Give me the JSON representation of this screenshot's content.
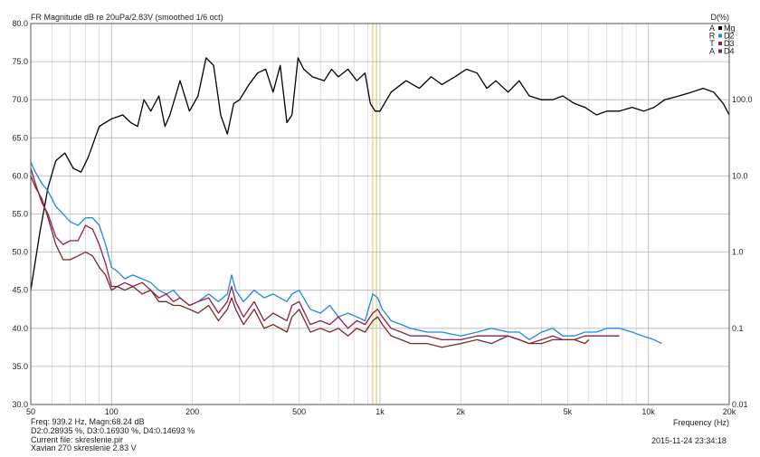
{
  "chart_data": {
    "type": "line",
    "title": "FR Magnitude dB re 20uPa/2.83V (smoothed 1/6 oct)",
    "ylabel_right": "D(%)",
    "xlabel": "Frequency (Hz)",
    "x_scale": "log",
    "xlim": [
      50,
      20000
    ],
    "ylim_left": [
      30,
      80
    ],
    "ylim_right": [
      0.01,
      1000
    ],
    "grid": true,
    "legend_position": "top-right",
    "x_ticks": [
      {
        "value": 50,
        "label": "50"
      },
      {
        "value": 100,
        "label": "100"
      },
      {
        "value": 200,
        "label": "200"
      },
      {
        "value": 500,
        "label": "500"
      },
      {
        "value": 1000,
        "label": "1k"
      },
      {
        "value": 2000,
        "label": "2k"
      },
      {
        "value": 5000,
        "label": "5k"
      },
      {
        "value": 10000,
        "label": "10k"
      },
      {
        "value": 20000,
        "label": "20k"
      }
    ],
    "y_left_ticks": [
      "80.0",
      "75.0",
      "70.0",
      "65.0",
      "60.0",
      "55.0",
      "50.0",
      "45.0",
      "40.0",
      "35.0",
      "30.0"
    ],
    "y_right_ticks": [
      "100.0",
      "10.0",
      "1.0",
      "0.1",
      "0.01"
    ],
    "cursors_hz": [
      939.2,
      970
    ],
    "legend": [
      {
        "code": "A",
        "name": "Mg",
        "color": "#000000"
      },
      {
        "code": "R",
        "name": "D2",
        "color": "#1e88e5"
      },
      {
        "code": "T",
        "name": "D3",
        "color": "#8e1f4b"
      },
      {
        "code": "A",
        "name": "D4",
        "color": "#7a2a2a"
      }
    ],
    "series": [
      {
        "name": "Mg",
        "color": "#000000",
        "x": [
          50,
          54,
          58,
          62,
          67,
          72,
          77,
          82,
          90,
          100,
          110,
          118,
          125,
          132,
          140,
          150,
          158,
          165,
          180,
          195,
          210,
          225,
          240,
          255,
          270,
          285,
          300,
          325,
          350,
          375,
          400,
          425,
          450,
          470,
          495,
          520,
          560,
          620,
          660,
          700,
          760,
          820,
          880,
          920,
          960,
          1000,
          1100,
          1250,
          1400,
          1550,
          1700,
          1900,
          2100,
          2300,
          2500,
          2700,
          3000,
          3300,
          3600,
          4000,
          4400,
          4800,
          5300,
          5800,
          6400,
          7000,
          7800,
          8700,
          9600,
          10500,
          11500,
          13000,
          14500,
          16000,
          17500,
          19000,
          20000
        ],
        "y": [
          45.0,
          52.5,
          58.5,
          62.0,
          63.0,
          61.0,
          60.5,
          62.5,
          66.5,
          67.5,
          68.0,
          67.0,
          66.5,
          70.0,
          68.5,
          70.5,
          66.5,
          68.0,
          72.5,
          68.5,
          70.5,
          75.5,
          74.5,
          68.0,
          65.5,
          69.5,
          70.0,
          72.0,
          73.5,
          74.0,
          71.0,
          74.5,
          67.0,
          68.0,
          75.5,
          74.0,
          73.0,
          72.5,
          74.0,
          73.0,
          74.0,
          72.5,
          73.5,
          69.5,
          68.5,
          68.5,
          71.0,
          72.5,
          71.5,
          73.0,
          72.0,
          73.0,
          74.0,
          73.5,
          71.5,
          72.5,
          71.0,
          72.5,
          70.5,
          70.0,
          70.0,
          70.5,
          69.5,
          69.0,
          68.0,
          68.5,
          68.5,
          69.0,
          68.5,
          69.0,
          70.0,
          70.5,
          71.0,
          71.5,
          71.0,
          69.5,
          68.0
        ]
      },
      {
        "name": "D2",
        "color": "#1e88e5",
        "x": [
          50,
          52,
          55,
          58,
          62,
          66,
          70,
          75,
          80,
          85,
          90,
          95,
          100,
          105,
          112,
          120,
          130,
          140,
          150,
          160,
          170,
          180,
          195,
          210,
          230,
          250,
          270,
          280,
          290,
          310,
          340,
          370,
          400,
          450,
          470,
          500,
          550,
          600,
          650,
          700,
          760,
          820,
          880,
          940,
          980,
          1020,
          1100,
          1200,
          1300,
          1500,
          1700,
          2000,
          2300,
          2600,
          3000,
          3300,
          3600,
          4000,
          4400,
          4800,
          5300,
          5800,
          6400,
          7000,
          7800,
          8700,
          9500,
          10500,
          11200
        ],
        "y": [
          61.8,
          60.5,
          59.0,
          58.0,
          56.0,
          55.0,
          54.0,
          53.5,
          54.5,
          54.5,
          53.5,
          51.0,
          48.0,
          47.5,
          46.5,
          47.0,
          46.5,
          46.0,
          45.0,
          44.5,
          45.0,
          44.0,
          43.0,
          43.5,
          44.5,
          43.5,
          44.5,
          47.0,
          45.0,
          43.5,
          45.0,
          44.0,
          44.5,
          43.5,
          44.5,
          45.0,
          42.5,
          42.0,
          43.0,
          41.5,
          42.0,
          41.5,
          41.0,
          44.5,
          44.0,
          42.5,
          41.0,
          40.5,
          40.0,
          39.5,
          39.5,
          39.0,
          39.5,
          40.0,
          39.5,
          39.5,
          38.5,
          39.5,
          40.0,
          39.0,
          39.0,
          39.5,
          39.5,
          40.0,
          40.0,
          39.5,
          39.0,
          38.5,
          38.0
        ]
      },
      {
        "name": "D3",
        "color": "#8e1f4b",
        "x": [
          50,
          52,
          55,
          58,
          62,
          66,
          70,
          75,
          80,
          85,
          90,
          95,
          100,
          105,
          112,
          120,
          130,
          140,
          150,
          160,
          170,
          180,
          195,
          210,
          230,
          250,
          270,
          280,
          290,
          310,
          340,
          370,
          400,
          450,
          470,
          500,
          550,
          600,
          650,
          700,
          760,
          820,
          880,
          940,
          980,
          1020,
          1100,
          1200,
          1300,
          1500,
          1700,
          2000,
          2300,
          2600,
          3000,
          3300,
          3600,
          4000,
          4400,
          4800,
          5300,
          5800,
          6400,
          7000,
          7800
        ],
        "y": [
          61.0,
          59.0,
          56.5,
          55.0,
          52.0,
          51.0,
          51.5,
          51.5,
          53.5,
          53.0,
          51.0,
          48.5,
          45.5,
          45.5,
          46.0,
          45.5,
          46.0,
          45.0,
          44.0,
          44.5,
          43.5,
          44.0,
          43.0,
          43.5,
          44.0,
          42.0,
          43.5,
          45.5,
          43.5,
          41.5,
          43.5,
          41.0,
          42.0,
          41.0,
          43.0,
          43.5,
          40.5,
          41.0,
          40.5,
          41.5,
          40.0,
          41.0,
          40.5,
          42.0,
          42.5,
          41.5,
          40.0,
          39.5,
          39.0,
          39.0,
          38.5,
          38.5,
          39.0,
          39.0,
          39.0,
          38.5,
          38.0,
          38.5,
          39.0,
          38.5,
          38.5,
          39.0,
          39.0,
          39.0,
          39.0
        ]
      },
      {
        "name": "D4",
        "color": "#7a2a2a",
        "x": [
          50,
          52,
          55,
          58,
          62,
          66,
          70,
          75,
          80,
          85,
          90,
          95,
          100,
          105,
          112,
          120,
          130,
          140,
          150,
          160,
          170,
          180,
          195,
          210,
          230,
          250,
          270,
          280,
          290,
          310,
          340,
          370,
          400,
          450,
          470,
          500,
          550,
          600,
          650,
          700,
          760,
          820,
          880,
          940,
          980,
          1020,
          1100,
          1200,
          1300,
          1500,
          1700,
          2000,
          2300,
          2600,
          3000,
          3300,
          3600,
          4000,
          4400,
          4800,
          5300,
          5800,
          6000
        ],
        "y": [
          60.0,
          58.5,
          57.0,
          54.5,
          51.0,
          49.0,
          49.0,
          49.5,
          50.0,
          49.5,
          48.0,
          47.0,
          45.0,
          45.5,
          45.0,
          45.5,
          44.5,
          45.0,
          43.5,
          43.5,
          43.0,
          43.0,
          42.5,
          42.0,
          43.0,
          41.0,
          42.5,
          44.0,
          42.5,
          40.5,
          42.5,
          40.0,
          40.5,
          39.5,
          41.5,
          42.5,
          39.5,
          40.0,
          39.5,
          40.0,
          39.0,
          40.0,
          39.5,
          41.0,
          41.5,
          40.5,
          39.0,
          38.5,
          38.0,
          38.0,
          37.5,
          38.0,
          38.5,
          38.0,
          39.0,
          38.5,
          38.0,
          38.0,
          38.5,
          38.5,
          38.5,
          38.0,
          38.5
        ]
      }
    ]
  },
  "footer": {
    "cursor_readout": "Freq: 939.2 Hz, Magn:68.24 dB",
    "distortion_readout": "D2:0.28935 %, D3:0.16930 %, D4:0.14693 %",
    "current_file": "Current file: skreslenie.pir",
    "measurement_info": "Xavian 270 skreslenie 2.83 V",
    "timestamp": "2015-11-24  23:34:18"
  }
}
